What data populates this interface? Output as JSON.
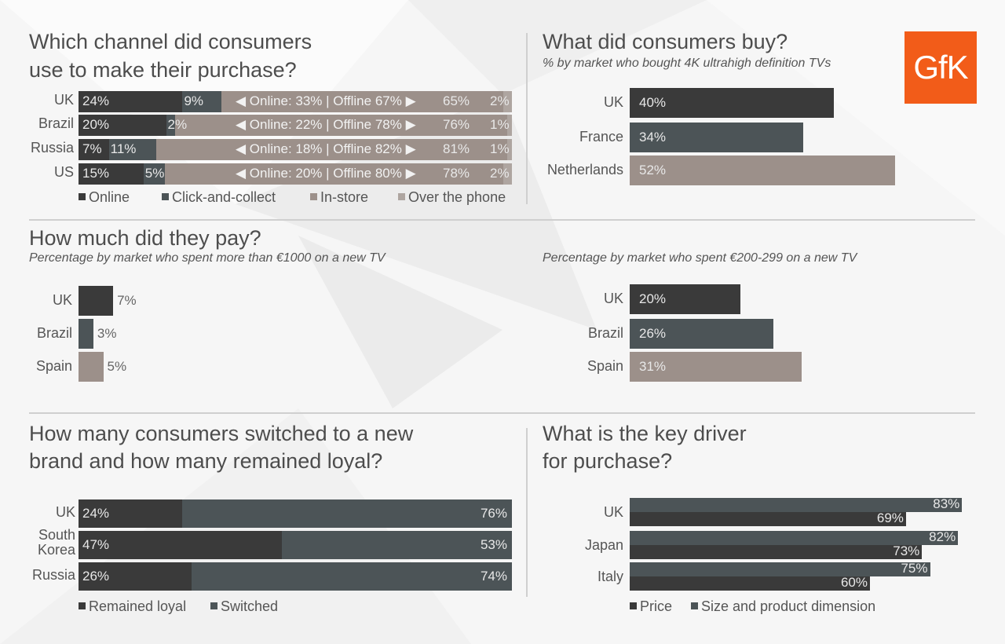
{
  "logo": "GfK",
  "colors": {
    "dark": "#3a3a3a",
    "slate": "#4c5457",
    "tan": "#9c908a",
    "light": "#aea5a0",
    "logo": "#f25c19"
  },
  "chart_data": [
    {
      "type": "bar",
      "stacked": true,
      "orientation": "horizontal",
      "title": "Which channel did consumers use to make their purchase?",
      "categories": [
        "UK",
        "Brazil",
        "Russia",
        "US"
      ],
      "series": [
        {
          "name": "Online",
          "values": [
            24,
            20,
            7,
            15
          ],
          "labels": [
            "24%",
            "20%",
            "7%",
            "15%"
          ]
        },
        {
          "name": "Click-and-collect",
          "values": [
            9,
            2,
            11,
            5
          ],
          "labels": [
            "9%",
            "2%",
            "11%",
            "5%"
          ]
        },
        {
          "name": "In-store",
          "values": [
            65,
            76,
            81,
            78
          ],
          "labels": [
            "65%",
            "76%",
            "81%",
            "78%"
          ]
        },
        {
          "name": "Over the phone",
          "values": [
            2,
            1,
            1,
            2
          ],
          "labels": [
            "2%",
            "1%",
            "1%",
            "2%"
          ]
        }
      ],
      "annotations": [
        "◀ Online: 33% | Offline 67% ▶",
        "◀ Online: 22% | Offline 78% ▶",
        "◀ Online: 18% | Offline 82% ▶",
        "◀ Online: 20% | Offline 80% ▶"
      ],
      "legend": [
        "Online",
        "Click-and-collect",
        "In-store",
        "Over the phone"
      ],
      "legend_position": "bottom"
    },
    {
      "type": "bar",
      "orientation": "horizontal",
      "title": "What did consumers buy?",
      "subtitle": "% by market who bought 4K ultrahigh definition TVs",
      "categories": [
        "UK",
        "France",
        "Netherlands"
      ],
      "values": [
        40,
        34,
        52
      ],
      "labels": [
        "40%",
        "34%",
        "52%"
      ],
      "xlim": [
        0,
        52
      ]
    },
    {
      "type": "bar",
      "orientation": "horizontal",
      "title": "How much did they pay?",
      "subtitle": "Percentage by market who spent more than €1000 on a new TV",
      "categories": [
        "UK",
        "Brazil",
        "Spain"
      ],
      "values": [
        7,
        3,
        5
      ],
      "labels": [
        "7%",
        "3%",
        "5%"
      ]
    },
    {
      "type": "bar",
      "orientation": "horizontal",
      "subtitle": "Percentage by market who spent €200-299 on a new TV",
      "categories": [
        "UK",
        "Brazil",
        "Spain"
      ],
      "values": [
        20,
        26,
        31
      ],
      "labels": [
        "20%",
        "26%",
        "31%"
      ]
    },
    {
      "type": "bar",
      "stacked": true,
      "orientation": "horizontal",
      "title": "How many consumers switched to a new brand and how many remained loyal?",
      "categories": [
        "UK",
        "South Korea",
        "Russia"
      ],
      "series": [
        {
          "name": "Remained loyal",
          "values": [
            24,
            47,
            26
          ],
          "labels": [
            "24%",
            "47%",
            "26%"
          ]
        },
        {
          "name": "Switched",
          "values": [
            76,
            53,
            74
          ],
          "labels": [
            "76%",
            "53%",
            "74%"
          ]
        }
      ],
      "legend": [
        "Remained loyal",
        "Switched"
      ],
      "legend_position": "bottom"
    },
    {
      "type": "bar",
      "orientation": "horizontal",
      "title": "What is the key driver for purchase?",
      "categories": [
        "UK",
        "Japan",
        "Italy"
      ],
      "series": [
        {
          "name": "Size and product dimension",
          "values": [
            83,
            82,
            75
          ],
          "labels": [
            "83%",
            "82%",
            "75%"
          ]
        },
        {
          "name": "Price",
          "values": [
            69,
            73,
            60
          ],
          "labels": [
            "69%",
            "73%",
            "60%"
          ]
        }
      ],
      "legend": [
        "Price",
        "Size and product dimension"
      ],
      "legend_position": "bottom"
    }
  ],
  "text": {
    "ch1_title_l1": "Which channel did consumers",
    "ch1_title_l2": "use to make their purchase?",
    "ch2_title": "What did consumers buy?",
    "ch2_sub": "% by market who bought 4K ultrahigh definition TVs",
    "ch3_title": "How much did they pay?",
    "ch3_sub": "Percentage by market who spent more than €1000 on a new TV",
    "ch4_sub": "Percentage by market who spent €200-299 on a new TV",
    "ch5_title_l1": "How many consumers switched to a new",
    "ch5_title_l2": "brand and how many remained loyal?",
    "ch6_title_l1": "What is the key driver",
    "ch6_title_l2": "for purchase?"
  }
}
